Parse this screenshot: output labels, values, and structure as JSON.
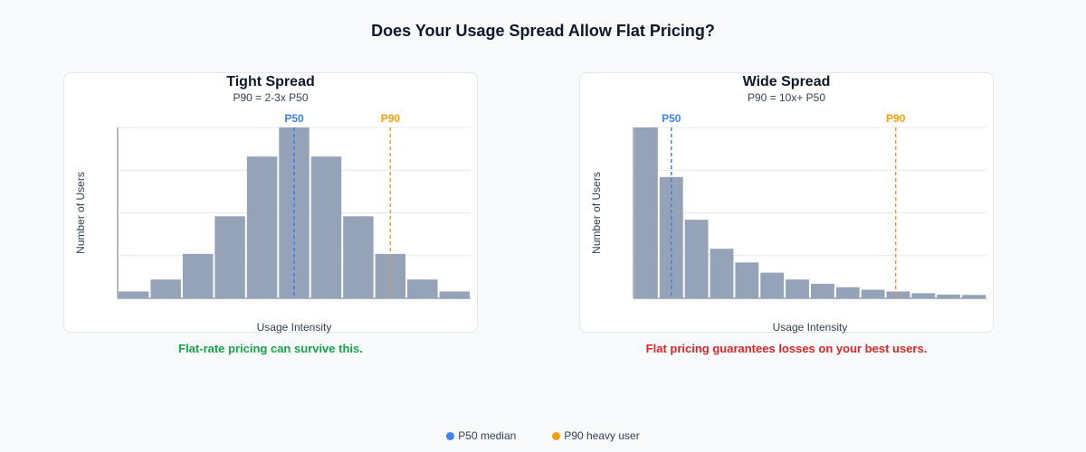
{
  "title": "Does Your Usage Spread Allow Flat Pricing?",
  "colors": {
    "bar": "#94a3b8",
    "p50": "#3b82f6",
    "p90": "#f59e0b",
    "good": "#16a34a",
    "bad": "#dc2626"
  },
  "legend": [
    {
      "label": "P50 median",
      "color": "#3b82f6"
    },
    {
      "label": "P90 heavy user",
      "color": "#f59e0b"
    }
  ],
  "chart_data": [
    {
      "type": "bar",
      "title": "Tight Spread",
      "subtitle": "P90 = 2-3x P50",
      "xlabel": "Usage Intensity",
      "ylabel": "Number of Users",
      "bins": 11,
      "values": [
        4,
        11,
        26,
        48,
        83,
        100,
        83,
        48,
        26,
        11,
        4
      ],
      "ylim": [
        0,
        100
      ],
      "grid": true,
      "markers": [
        {
          "label": "P50",
          "bin_position": 5.5,
          "color": "#3b82f6"
        },
        {
          "label": "P90",
          "bin_position": 8.5,
          "color": "#f59e0b"
        }
      ],
      "verdict": "Flat-rate pricing can survive this."
    },
    {
      "type": "bar",
      "title": "Wide Spread",
      "subtitle": "P90 = 10x+ P50",
      "xlabel": "Usage Intensity",
      "ylabel": "Number of Users",
      "bins": 14,
      "values": [
        100,
        71,
        46,
        29,
        21,
        15,
        11,
        8.5,
        6.5,
        5,
        4,
        3,
        2.2,
        2
      ],
      "ylim": [
        0,
        100
      ],
      "grid": true,
      "markers": [
        {
          "label": "P50",
          "bin_position": 1.5,
          "color": "#3b82f6"
        },
        {
          "label": "P90",
          "bin_position": 10.4,
          "color": "#f59e0b"
        }
      ],
      "verdict": "Flat pricing guarantees losses on your best users."
    }
  ]
}
